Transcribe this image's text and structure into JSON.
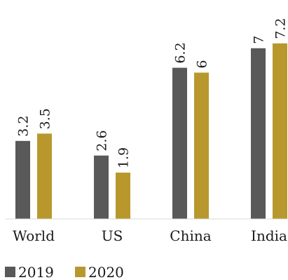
{
  "chart_data": {
    "type": "bar",
    "categories": [
      "World",
      "US",
      "China",
      "India"
    ],
    "series": [
      {
        "name": "2019",
        "values": [
          3.2,
          2.6,
          6.2,
          7
        ],
        "labels": [
          "3.2",
          "2.6",
          "6.2",
          "7"
        ],
        "color": "#595959"
      },
      {
        "name": "2020",
        "values": [
          3.5,
          1.9,
          6,
          7.2
        ],
        "labels": [
          "3.5",
          "1.9",
          "6",
          "7.2"
        ],
        "color": "#B8982D"
      }
    ],
    "ylim": [
      0,
      8
    ],
    "grid": false,
    "legend_position": "bottom-left",
    "axis_line_color": "#d9d9d9"
  }
}
